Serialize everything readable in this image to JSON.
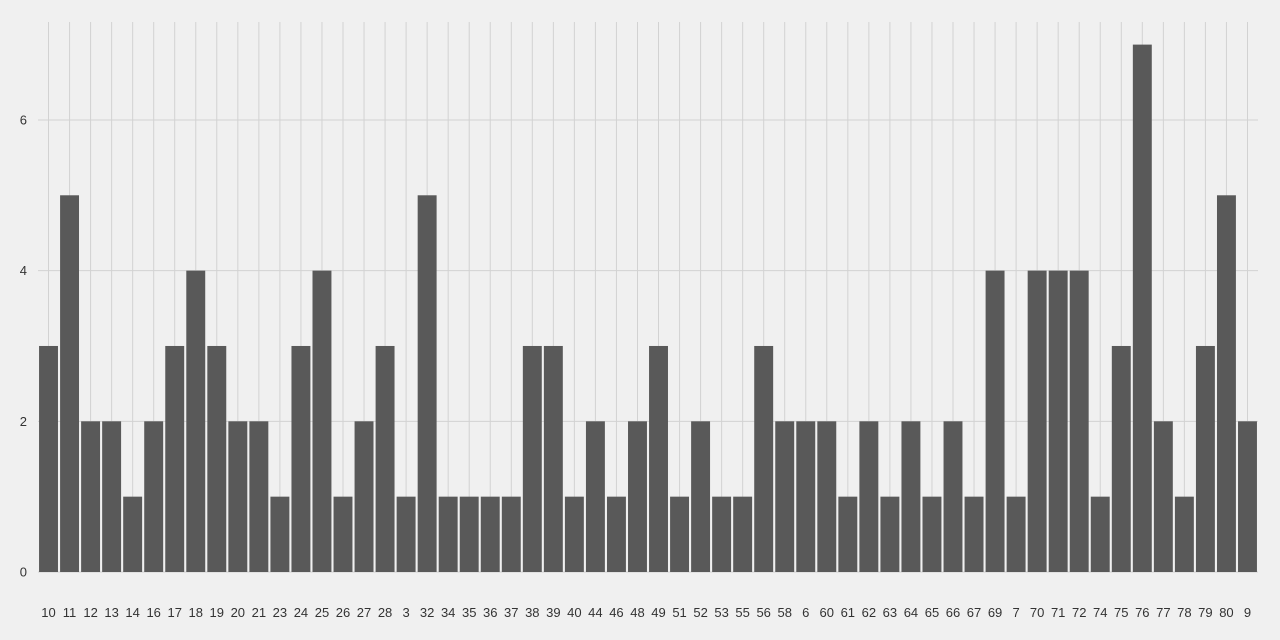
{
  "chart_data": {
    "type": "bar",
    "title": "",
    "xlabel": "",
    "ylabel": "",
    "categories": [
      "10",
      "11",
      "12",
      "13",
      "14",
      "16",
      "17",
      "18",
      "19",
      "20",
      "21",
      "23",
      "24",
      "25",
      "26",
      "27",
      "28",
      "3",
      "32",
      "34",
      "35",
      "36",
      "37",
      "38",
      "39",
      "40",
      "44",
      "46",
      "48",
      "49",
      "51",
      "52",
      "53",
      "55",
      "56",
      "58",
      "6",
      "60",
      "61",
      "62",
      "63",
      "64",
      "65",
      "66",
      "67",
      "69",
      "7",
      "70",
      "71",
      "72",
      "74",
      "75",
      "76",
      "77",
      "78",
      "79",
      "80",
      "9"
    ],
    "values": [
      3,
      5,
      2,
      2,
      1,
      2,
      3,
      4,
      3,
      2,
      2,
      1,
      3,
      4,
      1,
      2,
      3,
      1,
      5,
      1,
      1,
      1,
      1,
      3,
      3,
      1,
      2,
      1,
      2,
      3,
      1,
      2,
      1,
      1,
      3,
      2,
      2,
      2,
      1,
      2,
      1,
      2,
      1,
      2,
      1,
      4,
      1,
      4,
      4,
      4,
      1,
      3,
      7,
      2,
      1,
      3,
      5,
      2
    ],
    "ylim": [
      0,
      7.3
    ],
    "yticks": [
      0,
      2,
      4,
      6
    ],
    "ytick_labels": [
      "0",
      "2",
      "4",
      "6"
    ],
    "grid": true,
    "legend": "none",
    "colors": {
      "bar": "#595959",
      "background": "#f0f0f0",
      "grid": "#d2d2d2",
      "text": "#333333"
    }
  }
}
